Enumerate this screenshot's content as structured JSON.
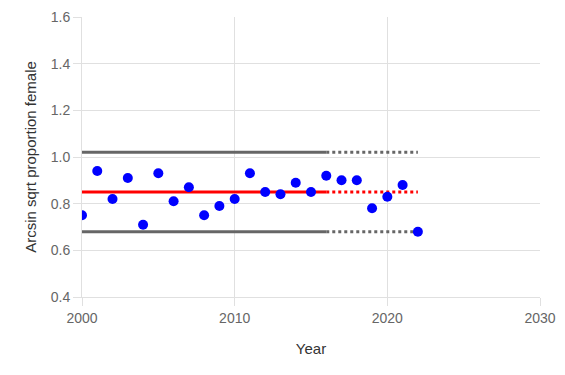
{
  "chart_data": {
    "type": "scatter",
    "x_label": "Year",
    "y_label": "Arcsin sqrt proportion female",
    "xlim": [
      2000,
      2030
    ],
    "xticks": [
      2000,
      2010,
      2020,
      2030
    ],
    "ylim": [
      0.4,
      1.6
    ],
    "yticks": [
      0.4,
      0.6,
      0.8,
      {
        "value": 1.0,
        "label": "1.0"
      },
      1.2,
      1.4,
      1.6
    ],
    "grid": true,
    "series": [
      {
        "type": "scatter",
        "marker": "circle",
        "color": "#0000ff",
        "x": [
          2000,
          2001,
          2002,
          2003,
          2004,
          2005,
          2006,
          2007,
          2008,
          2009,
          2010,
          2011,
          2012,
          2013,
          2014,
          2015,
          2016,
          2017,
          2018,
          2019,
          2020,
          2021,
          2022
        ],
        "values": [
          0.75,
          0.94,
          0.82,
          0.91,
          0.71,
          0.93,
          0.81,
          0.87,
          0.75,
          0.79,
          0.82,
          0.93,
          0.85,
          0.84,
          0.89,
          0.85,
          0.92,
          0.9,
          0.9,
          0.78,
          0.83,
          0.88,
          0.68
        ]
      },
      {
        "type": "line",
        "line_style": "solid",
        "color": "#ff0000",
        "x": [
          2000,
          2016
        ],
        "values": [
          0.85,
          0.85
        ]
      },
      {
        "type": "line",
        "line_style": "dotted",
        "color": "#ff0000",
        "x": [
          2016,
          2022
        ],
        "values": [
          0.85,
          0.85
        ]
      },
      {
        "type": "line",
        "line_style": "solid",
        "color": "#666666",
        "x": [
          2000,
          2016
        ],
        "values": [
          1.02,
          1.02
        ]
      },
      {
        "type": "line",
        "line_style": "dotted",
        "color": "#666666",
        "x": [
          2016,
          2022
        ],
        "values": [
          1.02,
          1.02
        ]
      },
      {
        "type": "line",
        "line_style": "solid",
        "color": "#666666",
        "x": [
          2000,
          2016
        ],
        "values": [
          0.68,
          0.68
        ]
      },
      {
        "type": "line",
        "line_style": "dotted",
        "color": "#666666",
        "x": [
          2016,
          2022
        ],
        "values": [
          0.68,
          0.68
        ]
      }
    ]
  }
}
